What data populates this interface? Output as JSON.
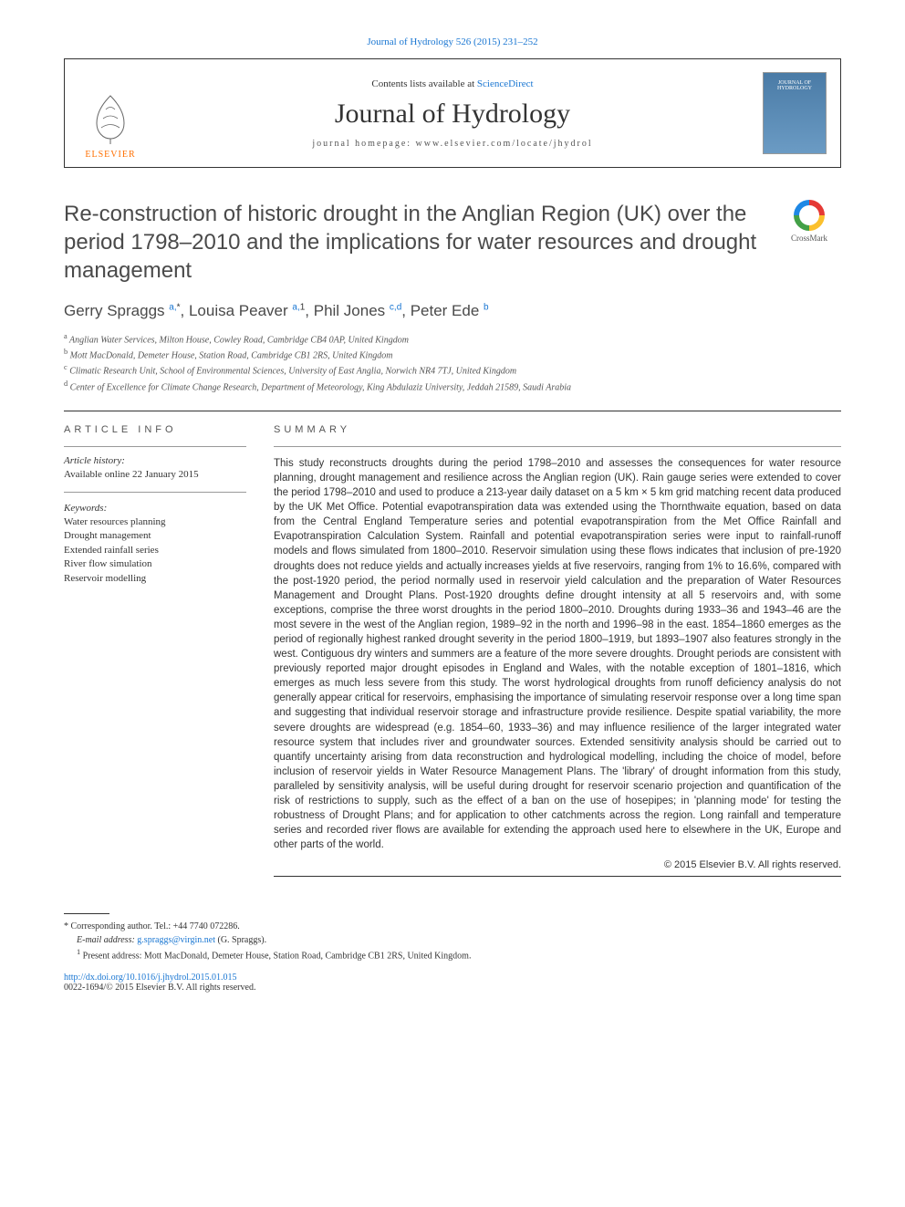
{
  "citation": {
    "text": "Journal of Hydrology 526 (2015) 231–252",
    "color": "#1976d2"
  },
  "header": {
    "contents_prefix": "Contents lists available at ",
    "contents_link": "ScienceDirect",
    "journal_name": "Journal of Hydrology",
    "homepage_prefix": "journal homepage: ",
    "homepage_url": "www.elsevier.com/locate/jhydrol",
    "elsevier_label": "ELSEVIER",
    "cover_label_1": "JOURNAL OF",
    "cover_label_2": "HYDROLOGY"
  },
  "crossmark": "CrossMark",
  "title": "Re-construction of historic drought in the Anglian Region (UK) over the period 1798–2010 and the implications for water resources and drought management",
  "authors": [
    {
      "name": "Gerry Spraggs",
      "marks": "a,*"
    },
    {
      "name": "Louisa Peaver",
      "marks": "a,1"
    },
    {
      "name": "Phil Jones",
      "marks": "c,d"
    },
    {
      "name": "Peter Ede",
      "marks": "b"
    }
  ],
  "affiliations": [
    {
      "sup": "a",
      "text": "Anglian Water Services, Milton House, Cowley Road, Cambridge CB4 0AP, United Kingdom"
    },
    {
      "sup": "b",
      "text": "Mott MacDonald, Demeter House, Station Road, Cambridge CB1 2RS, United Kingdom"
    },
    {
      "sup": "c",
      "text": "Climatic Research Unit, School of Environmental Sciences, University of East Anglia, Norwich NR4 7TJ, United Kingdom"
    },
    {
      "sup": "d",
      "text": "Center of Excellence for Climate Change Research, Department of Meteorology, King Abdulaziz University, Jeddah 21589, Saudi Arabia"
    }
  ],
  "article_info": {
    "heading": "ARTICLE INFO",
    "history_label": "Article history:",
    "history_text": "Available online 22 January 2015",
    "keywords_label": "Keywords:",
    "keywords": [
      "Water resources planning",
      "Drought management",
      "Extended rainfall series",
      "River flow simulation",
      "Reservoir modelling"
    ]
  },
  "summary": {
    "heading": "SUMMARY",
    "body": "This study reconstructs droughts during the period 1798–2010 and assesses the consequences for water resource planning, drought management and resilience across the Anglian region (UK). Rain gauge series were extended to cover the period 1798–2010 and used to produce a 213-year daily dataset on a 5 km × 5 km grid matching recent data produced by the UK Met Office. Potential evapotranspiration data was extended using the Thornthwaite equation, based on data from the Central England Temperature series and potential evapotranspiration from the Met Office Rainfall and Evapotranspiration Calculation System. Rainfall and potential evapotranspiration series were input to rainfall-runoff models and flows simulated from 1800–2010. Reservoir simulation using these flows indicates that inclusion of pre-1920 droughts does not reduce yields and actually increases yields at five reservoirs, ranging from 1% to 16.6%, compared with the post-1920 period, the period normally used in reservoir yield calculation and the preparation of Water Resources Management and Drought Plans. Post-1920 droughts define drought intensity at all 5 reservoirs and, with some exceptions, comprise the three worst droughts in the period 1800–2010. Droughts during 1933–36 and 1943–46 are the most severe in the west of the Anglian region, 1989–92 in the north and 1996–98 in the east. 1854–1860 emerges as the period of regionally highest ranked drought severity in the period 1800–1919, but 1893–1907 also features strongly in the west. Contiguous dry winters and summers are a feature of the more severe droughts. Drought periods are consistent with previously reported major drought episodes in England and Wales, with the notable exception of 1801–1816, which emerges as much less severe from this study. The worst hydrological droughts from runoff deficiency analysis do not generally appear critical for reservoirs, emphasising the importance of simulating reservoir response over a long time span and suggesting that individual reservoir storage and infrastructure provide resilience. Despite spatial variability, the more severe droughts are widespread (e.g. 1854–60, 1933–36) and may influence resilience of the larger integrated water resource system that includes river and groundwater sources. Extended sensitivity analysis should be carried out to quantify uncertainty arising from data reconstruction and hydrological modelling, including the choice of model, before inclusion of reservoir yields in Water Resource Management Plans. The 'library' of drought information from this study, paralleled by sensitivity analysis, will be useful during drought for reservoir scenario projection and quantification of the risk of restrictions to supply, such as the effect of a ban on the use of hosepipes; in 'planning mode' for testing the robustness of Drought Plans; and for application to other catchments across the region. Long rainfall and temperature series and recorded river flows are available for extending the approach used here to elsewhere in the UK, Europe and other parts of the world.",
    "copyright": "© 2015 Elsevier B.V. All rights reserved."
  },
  "footnotes": {
    "corresponding_label": "* Corresponding author. Tel.: +44 7740 072286.",
    "email_label": "E-mail address:",
    "email": "g.spraggs@virgin.net",
    "email_suffix": "(G. Spraggs).",
    "present_label": "1",
    "present_text": "Present address: Mott MacDonald, Demeter House, Station Road, Cambridge CB1 2RS, United Kingdom."
  },
  "doi": {
    "url": "http://dx.doi.org/10.1016/j.jhydrol.2015.01.015",
    "issn_line": "0022-1694/© 2015 Elsevier B.V. All rights reserved."
  },
  "colors": {
    "link": "#1976d2",
    "text": "#333333",
    "heading": "#4a4a4a",
    "orange": "#ff6f00"
  }
}
